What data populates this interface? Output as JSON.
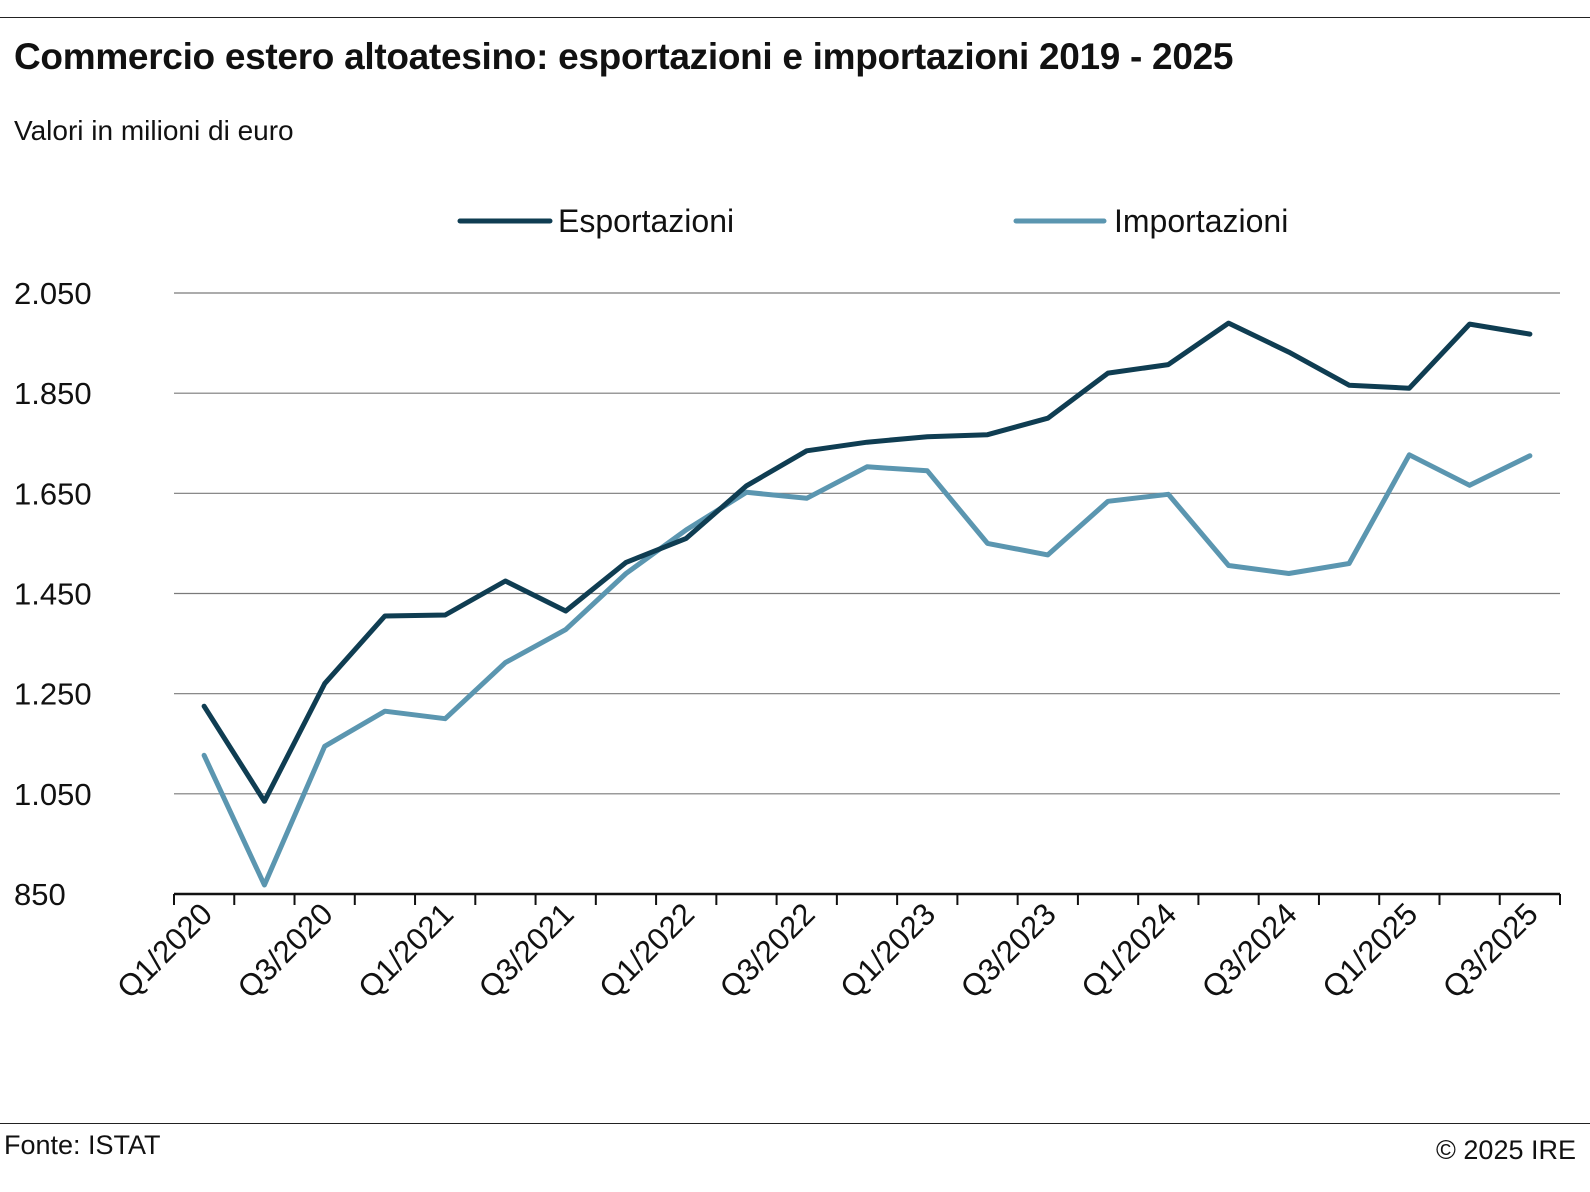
{
  "header": {
    "title": "Commercio estero altoatesino: esportazioni e importazioni 2019 - 2025",
    "subtitle": "Valori in milioni di euro"
  },
  "footer": {
    "source": "Fonte: ISTAT",
    "copyright": "© 2025  IRE"
  },
  "chart_data": {
    "type": "line",
    "title": "Commercio estero altoatesino: esportazioni e importazioni 2019 - 2025",
    "subtitle": "Valori in milioni di euro",
    "xlabel": "",
    "ylabel": "",
    "legend_position": "top",
    "grid": true,
    "categories": [
      "Q1/2020",
      "Q2/2020",
      "Q3/2020",
      "Q4/2020",
      "Q1/2021",
      "Q2/2021",
      "Q3/2021",
      "Q4/2021",
      "Q1/2022",
      "Q2/2022",
      "Q3/2022",
      "Q4/2022",
      "Q1/2023",
      "Q2/2023",
      "Q3/2023",
      "Q4/2023",
      "Q1/2024",
      "Q2/2024",
      "Q3/2024",
      "Q4/2024",
      "Q1/2025",
      "Q2/2025",
      "Q3/2025"
    ],
    "x_tick_labels": [
      "Q1/2020",
      "Q3/2020",
      "Q1/2021",
      "Q3/2021",
      "Q1/2022",
      "Q3/2022",
      "Q1/2023",
      "Q3/2023",
      "Q1/2024",
      "Q3/2024",
      "Q1/2025",
      "Q3/2025"
    ],
    "ylim": [
      850,
      2050
    ],
    "y_ticks": [
      850,
      1050,
      1250,
      1450,
      1650,
      1850,
      2050
    ],
    "y_tick_labels": [
      "850",
      "1.050",
      "1.250",
      "1.450",
      "1.650",
      "1.850",
      "2.050"
    ],
    "series": [
      {
        "name": "Esportazioni",
        "color": "#0f3d52",
        "values": [
          1225,
          1035,
          1270,
          1405,
          1407,
          1475,
          1415,
          1512,
          1560,
          1665,
          1735,
          1752,
          1763,
          1767,
          1800,
          1890,
          1907,
          1990,
          1932,
          1866,
          1860,
          1988,
          1968
        ]
      },
      {
        "name": "Importazioni",
        "color": "#5b96b0",
        "values": [
          1127,
          868,
          1145,
          1215,
          1200,
          1312,
          1378,
          1490,
          1577,
          1652,
          1640,
          1703,
          1695,
          1550,
          1527,
          1634,
          1648,
          1506,
          1490,
          1510,
          1727,
          1666,
          1725
        ]
      }
    ]
  }
}
